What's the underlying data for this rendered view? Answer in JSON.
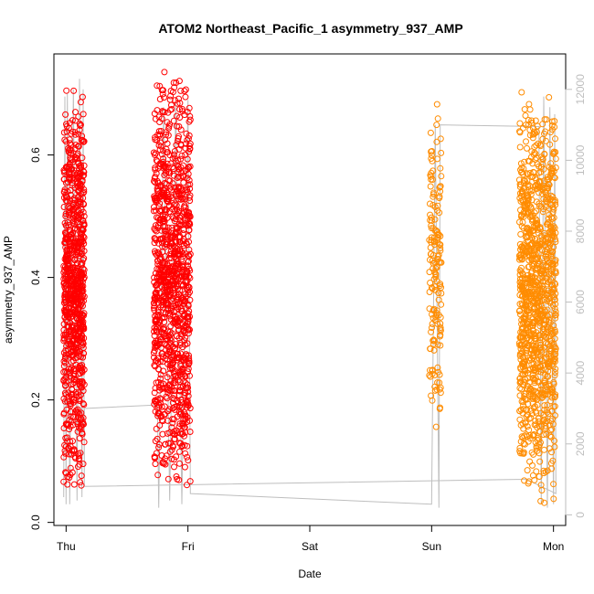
{
  "chart_data": {
    "type": "scatter",
    "title": "ATOM2 Northeast_Pacific_1 asymmetry_937_AMP",
    "xlabel": "Date",
    "ylabel": "asymmetry_937_AMP",
    "x_ticks": [
      "Thu",
      "Fri",
      "Sat",
      "Sun",
      "Mon"
    ],
    "x_domain_days": [
      -0.1,
      4.1
    ],
    "ylim": [
      -0.005,
      0.765
    ],
    "y_ticks": [
      0.0,
      0.2,
      0.4,
      0.6
    ],
    "y_tick_labels": [
      "0.0",
      "0.2",
      "0.4",
      "0.6"
    ],
    "y2lim": [
      -300,
      13000
    ],
    "y2_ticks": [
      0,
      2000,
      4000,
      6000,
      8000,
      10000,
      12000
    ],
    "y2_tick_labels": [
      "0",
      "2000",
      "4000",
      "6000",
      "8000",
      "10000",
      "12000"
    ],
    "grid": false,
    "colors": {
      "series_a": "#ff0000",
      "series_b": "#ff8c00",
      "altitude_line": "#bebebe",
      "right_axis": "#bebebe"
    },
    "series": [
      {
        "color": "#ff0000",
        "segments": [
          {
            "x_range": [
              -0.02,
              0.15
            ],
            "y_range": [
              0.04,
              0.72
            ],
            "count": 850
          },
          {
            "x_range": [
              0.72,
              1.02
            ],
            "y_range": [
              0.03,
              0.75
            ],
            "count": 1100
          }
        ]
      },
      {
        "color": "#ff8c00",
        "segments": [
          {
            "x_range": [
              -0.02,
              0.08
            ],
            "y_range": [
              0.15,
              0.7
            ],
            "x_offset_day": 3.0,
            "count": 160
          },
          {
            "x_range": [
              0.72,
              1.02
            ],
            "y_range": [
              0.02,
              0.71
            ],
            "x_offset_day": 3.0,
            "count": 1100
          }
        ]
      }
    ],
    "altitude_line": [
      [
        -0.02,
        500
      ],
      [
        -0.01,
        11800
      ],
      [
        0.0,
        300
      ],
      [
        0.01,
        11900
      ],
      [
        0.03,
        300
      ],
      [
        0.06,
        12000
      ],
      [
        0.09,
        400
      ],
      [
        0.11,
        12300
      ],
      [
        0.13,
        500
      ],
      [
        0.14,
        12000
      ],
      [
        0.15,
        800
      ],
      [
        0.15,
        3000
      ],
      [
        0.75,
        3100
      ],
      [
        0.76,
        200
      ],
      [
        0.8,
        11500
      ],
      [
        0.85,
        400
      ],
      [
        0.9,
        11600
      ],
      [
        0.95,
        300
      ],
      [
        1.0,
        11700
      ],
      [
        1.02,
        600
      ],
      [
        3.0,
        300
      ],
      [
        3.03,
        11000
      ],
      [
        3.06,
        200
      ],
      [
        3.07,
        11000
      ],
      [
        3.88,
        10950
      ],
      [
        3.9,
        300
      ],
      [
        3.92,
        11800
      ],
      [
        3.95,
        200
      ],
      [
        3.97,
        11500
      ],
      [
        4.0,
        300
      ],
      [
        4.01,
        11300
      ],
      [
        4.02,
        600
      ],
      [
        3.78,
        1000
      ],
      [
        3.7,
        1000
      ],
      [
        0.15,
        800
      ]
    ]
  }
}
